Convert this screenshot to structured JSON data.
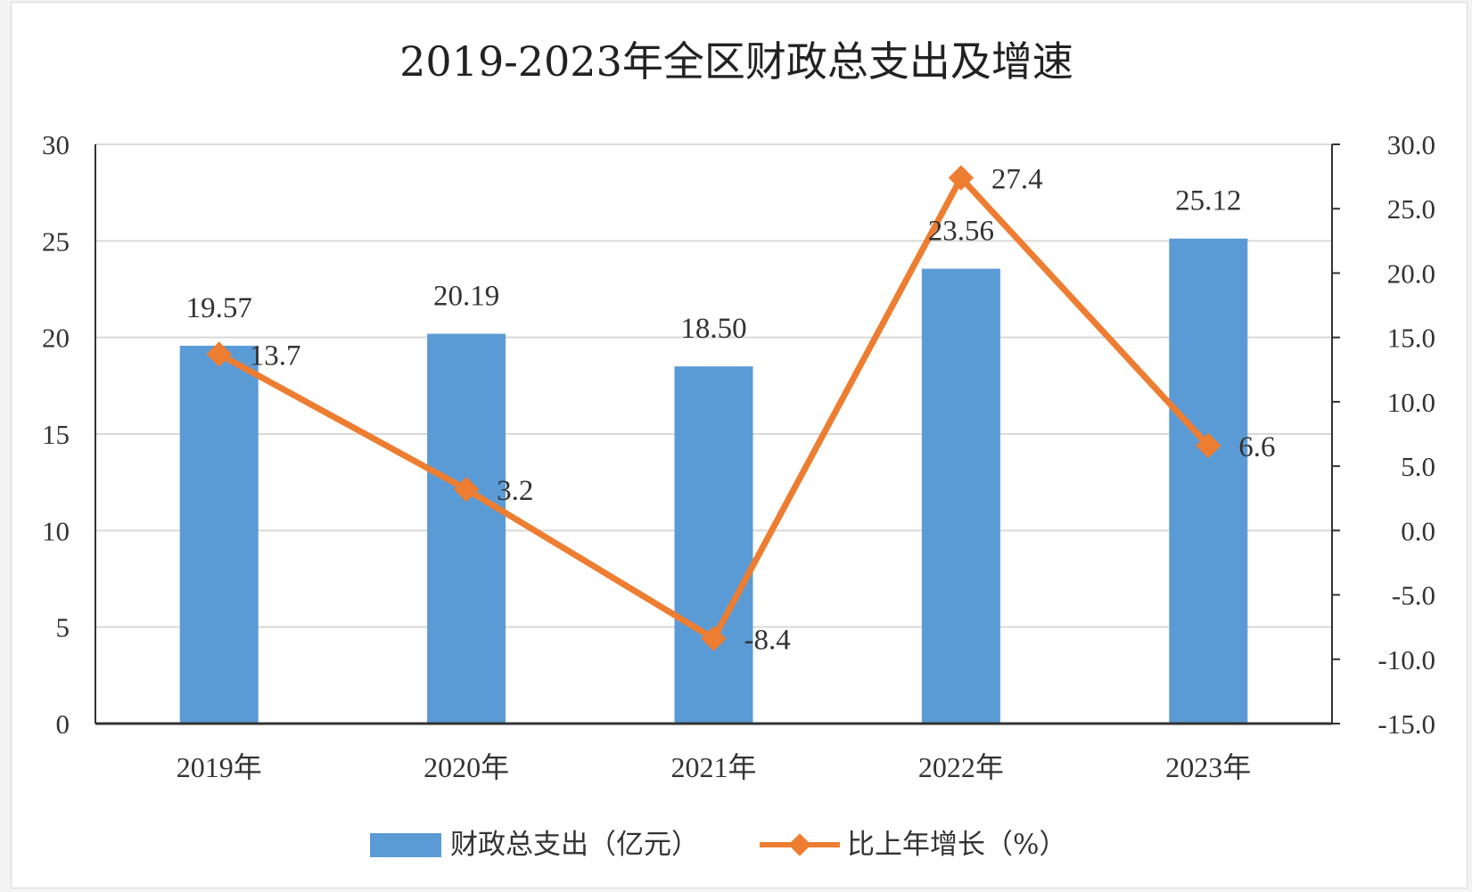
{
  "chart_data": {
    "type": "bar",
    "title": "2019-2023年全区财政总支出及增速",
    "categories": [
      "2019年",
      "2020年",
      "2021年",
      "2022年",
      "2023年"
    ],
    "series": [
      {
        "name": "财政总支出（亿元）",
        "type": "bar",
        "axis": "left",
        "values": [
          19.57,
          20.19,
          18.5,
          23.56,
          25.12
        ],
        "labels": [
          "19.57",
          "20.19",
          "18.50",
          "23.56",
          "25.12"
        ],
        "color": "#5b9bd5"
      },
      {
        "name": "比上年增长（%）",
        "type": "line",
        "axis": "right",
        "values": [
          13.7,
          3.2,
          -8.4,
          27.4,
          6.6
        ],
        "labels": [
          "13.7",
          "3.2",
          "-8.4",
          "27.4",
          "6.6"
        ],
        "color": "#ed7d31"
      }
    ],
    "y_left": {
      "min": 0,
      "max": 30,
      "ticks": [
        0,
        5,
        10,
        15,
        20,
        25,
        30
      ],
      "tick_labels": [
        "0",
        "5",
        "10",
        "15",
        "20",
        "25",
        "30"
      ]
    },
    "y_right": {
      "min": -15,
      "max": 30,
      "ticks": [
        -15,
        -10,
        -5,
        0,
        5,
        10,
        15,
        20,
        25,
        30
      ],
      "tick_labels": [
        "-15.0",
        "-10.0",
        "-5.0",
        "0.0",
        "5.0",
        "10.0",
        "15.0",
        "20.0",
        "25.0",
        "30.0"
      ]
    },
    "grid": true,
    "legend_position": "bottom"
  }
}
